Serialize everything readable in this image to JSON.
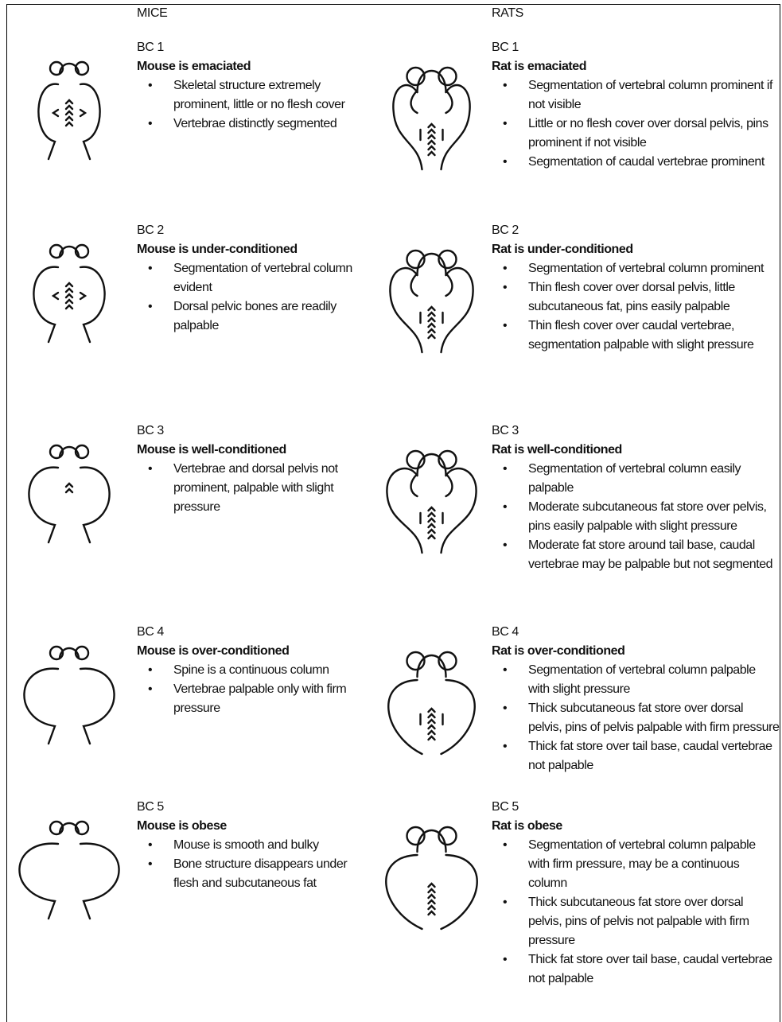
{
  "header": {
    "mice": "MICE",
    "rats": "RATS"
  },
  "mice": [
    {
      "score": "BC 1",
      "title": "Mouse is emaciated",
      "bullets": [
        "Skeletal structure extremely prominent, little or no flesh cover",
        "Vertebrae distinctly segmented"
      ]
    },
    {
      "score": "BC 2",
      "title": "Mouse is under-conditioned",
      "bullets": [
        "Segmentation of vertebral column evident",
        "Dorsal pelvic bones are readily palpable"
      ]
    },
    {
      "score": "BC 3",
      "title": "Mouse is well-conditioned",
      "bullets": [
        "Vertebrae and dorsal pelvis not prominent, palpable with slight pressure"
      ]
    },
    {
      "score": "BC 4",
      "title": "Mouse is over-conditioned",
      "bullets": [
        "Spine is a continuous column",
        "Vertebrae palpable only with firm pressure"
      ]
    },
    {
      "score": "BC 5",
      "title": "Mouse is obese",
      "bullets": [
        "Mouse is smooth and bulky",
        "Bone structure disappears under flesh and subcutaneous fat"
      ]
    }
  ],
  "rats": [
    {
      "score": "BC 1",
      "title": "Rat is emaciated",
      "bullets": [
        "Segmentation of vertebral column prominent if not visible",
        "Little or no flesh cover over dorsal pelvis, pins prominent if not visible",
        "Segmentation of caudal vertebrae prominent"
      ]
    },
    {
      "score": "BC 2",
      "title": "Rat is under-conditioned",
      "bullets": [
        "Segmentation of vertebral column prominent",
        "Thin flesh cover over dorsal pelvis, little subcutaneous fat, pins easily palpable",
        "Thin flesh cover over caudal vertebrae, segmentation palpable with slight pressure"
      ]
    },
    {
      "score": "BC 3",
      "title": "Rat is well-conditioned",
      "bullets": [
        "Segmentation of vertebral column easily palpable",
        "Moderate subcutaneous fat store over pelvis, pins easily palpable with slight pressure",
        "Moderate fat store around tail base, caudal vertebrae may be palpable but not segmented"
      ]
    },
    {
      "score": "BC 4",
      "title": "Rat is over-conditioned",
      "bullets": [
        "Segmentation of vertebral column palpable with slight pressure",
        "Thick subcutaneous fat store over dorsal pelvis, pins of pelvis palpable with firm pressure",
        "Thick fat store over tail base, caudal vertebrae not palpable"
      ]
    },
    {
      "score": "BC 5",
      "title": "Rat is obese",
      "bullets": [
        "Segmentation of vertebral column palpable with firm pressure, may be a continuous column",
        "Thick subcutaneous fat store over dorsal pelvis, pins of pelvis not palpable with firm pressure",
        "Thick fat store over tail base, caudal vertebrae not palpable"
      ]
    }
  ]
}
